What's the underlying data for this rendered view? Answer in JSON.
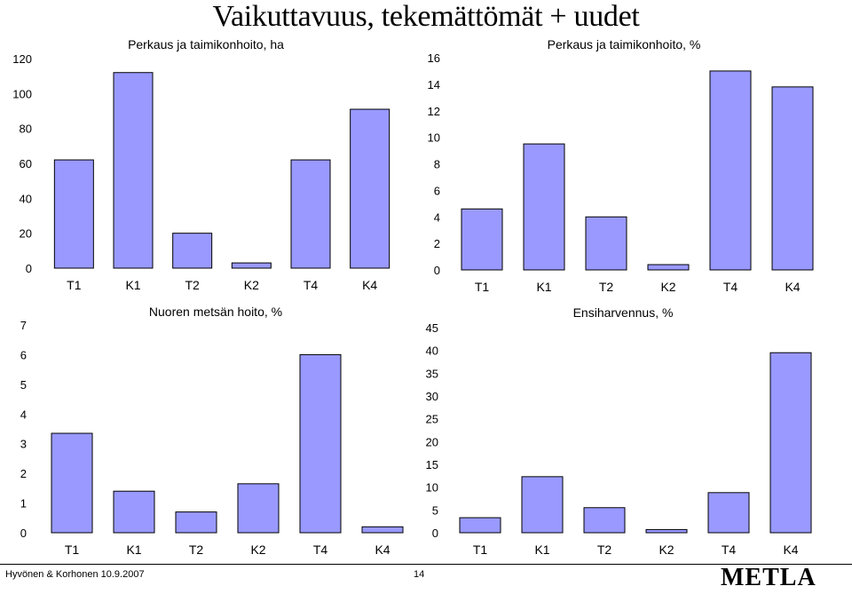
{
  "page": {
    "title": "Vaikuttavuus, tekemättömät + uudet",
    "footer_author": "Hyvönen & Korhonen  10.9.2007",
    "footer_page": "14",
    "logo_text": "METLA"
  },
  "colors": {
    "bar_fill": "#9999ff",
    "bar_stroke": "#000000"
  },
  "chart_data": [
    {
      "type": "bar",
      "title": "Perkaus ja taimikonhoito, ha",
      "categories": [
        "T1",
        "K1",
        "T2",
        "K2",
        "T4",
        "K4"
      ],
      "values": [
        62,
        112,
        20,
        3,
        62,
        91
      ],
      "ylim": [
        0,
        120
      ],
      "yticks": [
        "0",
        "20",
        "40",
        "60",
        "80",
        "100",
        "120"
      ]
    },
    {
      "type": "bar",
      "title": "Perkaus ja taimikonhoito, %",
      "categories": [
        "T1",
        "K1",
        "T2",
        "K2",
        "T4",
        "K4"
      ],
      "values": [
        4.6,
        9.5,
        4.0,
        0.4,
        15.0,
        13.8
      ],
      "ylim": [
        0,
        16
      ],
      "yticks": [
        "0",
        "2",
        "4",
        "6",
        "8",
        "10",
        "12",
        "14",
        "16"
      ]
    },
    {
      "type": "bar",
      "title": "Nuoren metsän hoito, %",
      "categories": [
        "T1",
        "K1",
        "T2",
        "K2",
        "T4",
        "K4"
      ],
      "values": [
        3.35,
        1.4,
        0.7,
        1.65,
        6.0,
        0.2
      ],
      "ylim": [
        0,
        7
      ],
      "yticks": [
        "0",
        "1",
        "2",
        "3",
        "4",
        "5",
        "6",
        "7"
      ]
    },
    {
      "type": "bar",
      "title": "Ensiharvennus, %",
      "categories": [
        "T1",
        "K1",
        "T2",
        "K2",
        "T4",
        "K4"
      ],
      "values": [
        3.3,
        12.3,
        5.5,
        0.7,
        8.8,
        39.5
      ],
      "ylim": [
        0,
        45
      ],
      "yticks": [
        "0",
        "5",
        "10",
        "15",
        "20",
        "25",
        "30",
        "35",
        "40",
        "45"
      ]
    }
  ]
}
